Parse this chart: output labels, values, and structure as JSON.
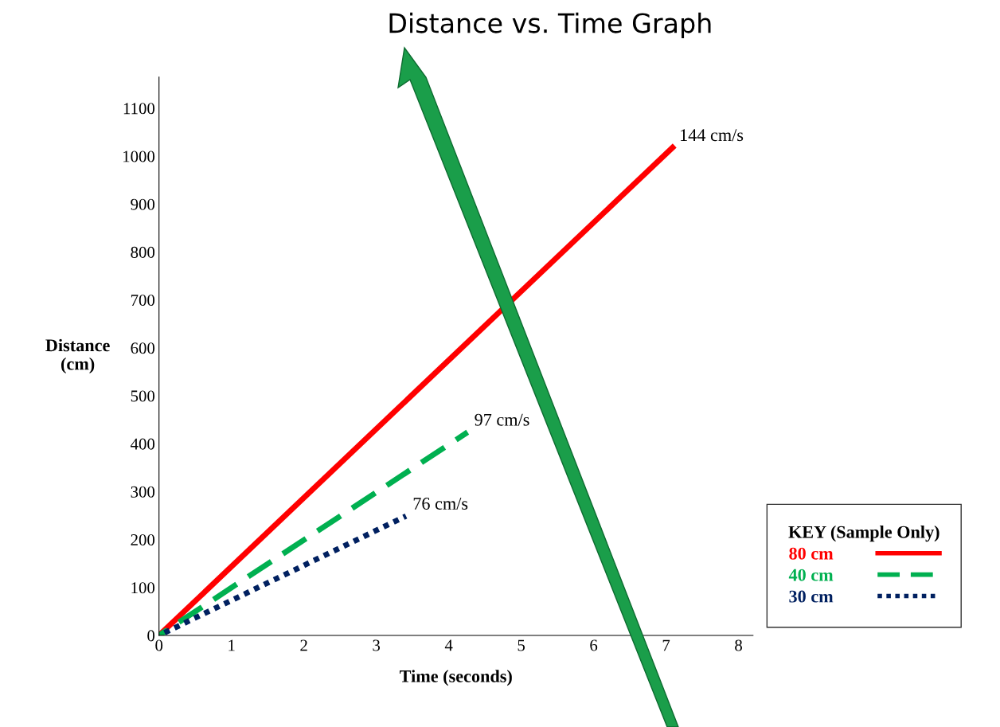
{
  "chart_data": {
    "type": "line",
    "title": "Distance vs. Time Graph",
    "xlabel": "Time (seconds)",
    "ylabel": "Distance\n(cm)",
    "legend_title": "KEY (Sample Only)",
    "series": [
      {
        "name": "80 cm",
        "color": "#ff0000",
        "line_style": "solid",
        "x": [
          0,
          7.09
        ],
        "values": [
          0,
          1018
        ]
      },
      {
        "name": "40 cm",
        "color": "#00b050",
        "line_style": "dashed",
        "x": [
          0,
          4.26
        ],
        "values": [
          0,
          424
        ]
      },
      {
        "name": "30 cm",
        "color": "#002060",
        "line_style": "dotted",
        "x": [
          0,
          3.41
        ],
        "values": [
          0,
          249
        ]
      }
    ],
    "annotations": [
      {
        "text": "144 cm/s",
        "x": 7.09,
        "y": 1018
      },
      {
        "text": "97 cm/s",
        "x": 4.26,
        "y": 424
      },
      {
        "text": "76 cm/s",
        "x": 3.41,
        "y": 249
      }
    ],
    "xlim": [
      0,
      8.2
    ],
    "ylim": [
      0,
      1165
    ],
    "xticks": [
      0,
      1,
      2,
      3,
      4,
      5,
      6,
      7,
      8
    ],
    "yticks": [
      0,
      100,
      200,
      300,
      400,
      500,
      600,
      700,
      800,
      900,
      1000,
      1100
    ],
    "grid": false,
    "legend": "bottom right",
    "marker": "none"
  }
}
